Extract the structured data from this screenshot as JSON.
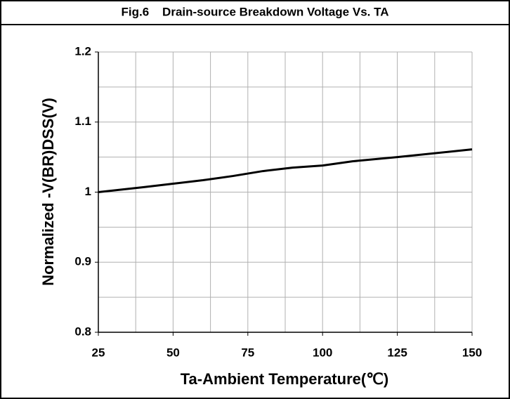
{
  "chart_data": {
    "type": "line",
    "title": "Fig.6    Drain-source Breakdown Voltage Vs. TA",
    "xlabel": "Ta-Ambient Temperature(℃)",
    "ylabel": "Normalized -V(BR)DSS(V)",
    "x": [
      25,
      40,
      50,
      60,
      70,
      80,
      90,
      100,
      110,
      125,
      150
    ],
    "series": [
      {
        "name": "-V(BR)DSS",
        "color": "#000000",
        "values": [
          1.0,
          1.007,
          1.012,
          1.017,
          1.023,
          1.03,
          1.035,
          1.038,
          1.044,
          1.05,
          1.061
        ]
      }
    ],
    "xlim": [
      25,
      150
    ],
    "xticks": [
      25,
      50,
      75,
      100,
      125,
      150
    ],
    "minor_xticks": [
      37.5,
      62.5,
      87.5,
      112.5,
      137.5
    ],
    "ylim": [
      0.8,
      1.2
    ],
    "yticks": [
      0.8,
      0.9,
      1,
      1.1,
      1.2
    ],
    "minor_yticks": [
      0.85,
      0.95,
      1.05,
      1.15
    ],
    "grid": true
  }
}
